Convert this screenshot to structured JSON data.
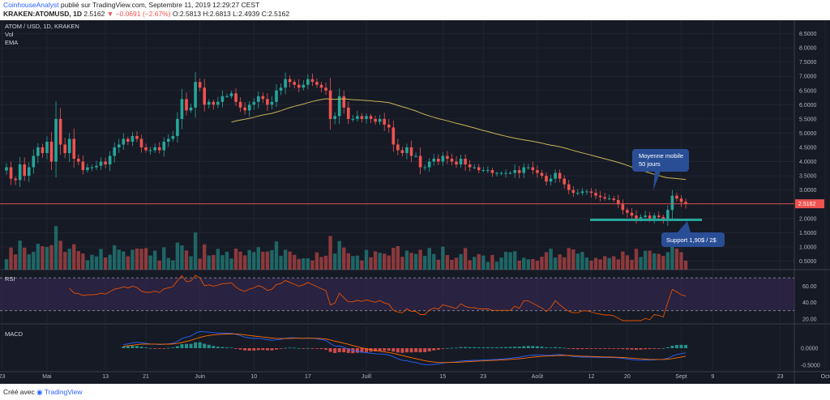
{
  "header": {
    "author": "CoinhouseAnalyst",
    "publish_text": "publié sur TradingView.com, Septembre 11, 2019 12:29:27 CEST",
    "symbol_line": "KRAKEN:ATOMUSD, 1D",
    "last": "2.5162",
    "change_arrow": "▼",
    "change": "−0.0691 (−2.67%)",
    "ohlc": "O:2.5813 H:2.6813 L:2.4939 C:2.5162"
  },
  "legend": {
    "title": "ATOM / USD, 1D, KRAKEN",
    "vol": "Vol",
    "ema": "EMA"
  },
  "price_tag": "2.5162",
  "annotations": {
    "ma_box_line1": "Moyenne mobile",
    "ma_box_line2": "50 jours",
    "support_box": "Support 1,90$ / 2$"
  },
  "footer": {
    "created_with": "Créé avec",
    "brand": "TradingView"
  },
  "colors": {
    "background": "#161a25",
    "up": "#26a69a",
    "down": "#ef5350",
    "ema": "#c9b458",
    "rsi_line": "#e65100",
    "rsi_band": "#3b2a5a",
    "macd_line": "#2962ff",
    "signal_line": "#ff6d00",
    "support": "#26a69a",
    "annotation_box": "#2a4e96"
  },
  "chart_data": [
    {
      "type": "candlestick",
      "title": "ATOM / USD, 1D, KRAKEN",
      "x_ticks": [
        "23",
        "Mai",
        "13",
        "21",
        "Juin",
        "10",
        "17",
        "Juill",
        "15",
        "23",
        "Août",
        "12",
        "20",
        "Sept",
        "9",
        "23",
        "Oct"
      ],
      "y_ticks": [
        "8.5000",
        "8.0000",
        "7.5000",
        "7.0000",
        "6.5000",
        "6.0000",
        "5.5000",
        "5.0000",
        "4.5000",
        "4.0000",
        "3.5000",
        "3.0000",
        "2.5000",
        "2.0000",
        "1.5000",
        "1.0000",
        "0.5000"
      ],
      "ylim": [
        0.2,
        8.8
      ],
      "last_price": 2.5162,
      "horizontal_line": 2.5162,
      "support_level": 1.95,
      "ema_period": 50,
      "close": [
        3.8,
        3.4,
        3.35,
        3.9,
        3.5,
        3.8,
        4.2,
        4.5,
        4.3,
        4.7,
        4.0,
        5.5,
        4.6,
        4.3,
        4.8,
        4.1,
        4.0,
        3.7,
        3.8,
        3.8,
        3.85,
        4.0,
        3.9,
        4.2,
        4.5,
        4.6,
        4.8,
        4.7,
        4.9,
        4.8,
        4.5,
        4.4,
        4.4,
        4.5,
        4.4,
        4.7,
        4.8,
        4.9,
        5.5,
        6.2,
        5.8,
        5.9,
        6.8,
        6.6,
        6.0,
        6.1,
        6.0,
        6.1,
        6.3,
        6.3,
        6.4,
        6.1,
        5.9,
        5.8,
        6.0,
        6.1,
        6.3,
        6.2,
        6.0,
        6.1,
        6.5,
        6.6,
        6.9,
        6.8,
        6.7,
        6.6,
        6.7,
        6.9,
        6.8,
        6.7,
        6.6,
        6.5,
        5.5,
        5.6,
        6.3,
        5.9,
        5.5,
        5.5,
        5.6,
        5.5,
        5.6,
        5.5,
        5.4,
        5.5,
        5.3,
        5.2,
        4.6,
        4.4,
        4.3,
        4.5,
        4.2,
        4.2,
        3.8,
        3.8,
        4.0,
        4.1,
        4.0,
        4.2,
        4.1,
        4.0,
        3.9,
        4.1,
        3.9,
        3.8,
        3.8,
        3.7,
        3.7,
        3.7,
        3.6,
        3.6,
        3.6,
        3.6,
        3.6,
        3.7,
        3.6,
        3.8,
        3.8,
        3.7,
        3.6,
        3.5,
        3.3,
        3.4,
        3.6,
        3.4,
        3.2,
        3.0,
        2.9,
        2.9,
        2.95,
        2.95,
        2.9,
        2.8,
        2.75,
        2.7,
        2.7,
        2.65,
        2.5,
        2.3,
        2.2,
        2.1,
        2.0,
        2.05,
        2.1,
        2.0,
        2.1,
        2.05,
        1.95,
        2.3,
        2.8,
        2.7,
        2.58,
        2.52
      ],
      "volume_ema": "EMA 50"
    },
    {
      "type": "line",
      "title": "RSI",
      "y_ticks": [
        "60.00",
        "40.00",
        "20.00"
      ],
      "ylim": [
        15,
        78
      ],
      "band": [
        30,
        70
      ],
      "last_value": 48
    },
    {
      "type": "line",
      "title": "MACD",
      "y_ticks": [
        "0.0000",
        "-0.5000"
      ],
      "ylim": [
        -0.65,
        0.65
      ]
    }
  ]
}
